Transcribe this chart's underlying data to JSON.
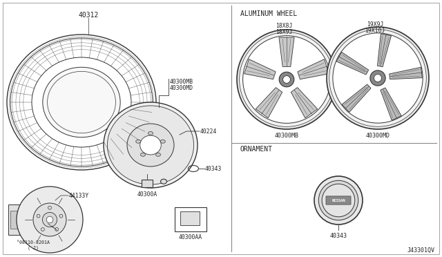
{
  "bg_color": "#ffffff",
  "line_color": "#333333",
  "text_color": "#222222",
  "labels": {
    "tire": "40312",
    "hub": "40224",
    "weight": "40300A",
    "cap": "40300AA",
    "clip": "40343",
    "brake": "44133Y",
    "brake2": "°08110-8201A\n( 2)"
  },
  "section_aluminum": "ALUMINUM WHEEL",
  "section_ornament": "ORNAMENT",
  "wheel_label_line1": "40300MB",
  "wheel_label_line2": "40300MD",
  "wheel1_label": "40300MB",
  "wheel2_label": "40300MD",
  "wheel1_size1": "18X8J",
  "wheel1_size2": "18X9J",
  "wheel2_size1": "19X9J",
  "wheel2_size2": "19X10J",
  "ref_code": "J43301QV"
}
